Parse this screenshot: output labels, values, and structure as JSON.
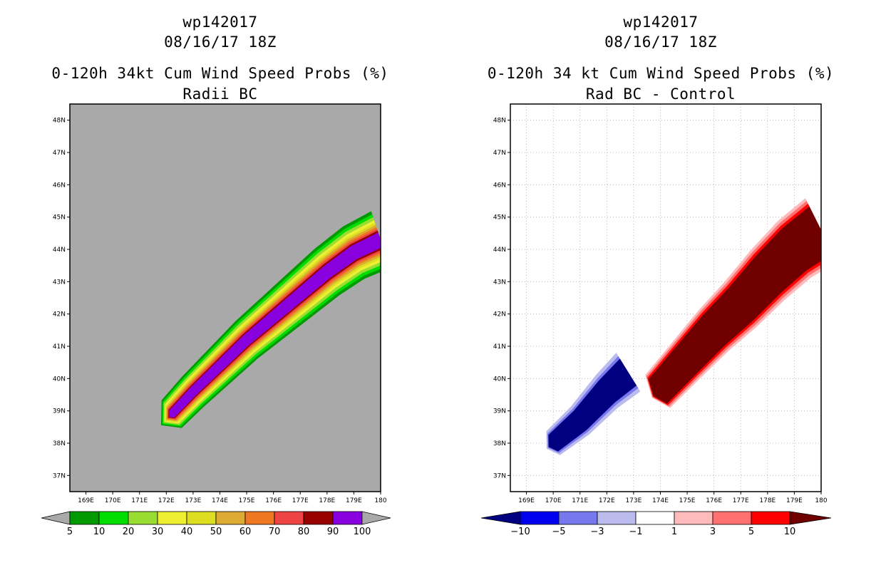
{
  "chart_data": [
    {
      "type": "heatmap",
      "header_line1": "wp142017",
      "header_line2": "08/16/17 18Z",
      "title": "0-120h 34kt Cum Wind Speed Probs (%)",
      "subtitle": "Radii BC",
      "x_ticks": [
        "169E",
        "170E",
        "171E",
        "172E",
        "173E",
        "174E",
        "175E",
        "176E",
        "177E",
        "178E",
        "179E",
        "180"
      ],
      "y_ticks": [
        "37N",
        "38N",
        "39N",
        "40N",
        "41N",
        "42N",
        "43N",
        "44N",
        "45N",
        "46N",
        "47N",
        "48N"
      ],
      "xlim": [
        168.4,
        180
      ],
      "ylim": [
        36.5,
        48.5
      ],
      "background_color": "#a9a9a9",
      "levels": [
        5,
        10,
        20,
        30,
        40,
        50,
        60,
        70,
        80,
        90,
        100
      ],
      "colors": [
        "#009900",
        "#00dd00",
        "#99dd33",
        "#eeee33",
        "#dddd22",
        "#ddaa33",
        "#ee7722",
        "#ee4444",
        "#990000",
        "#8800dd"
      ],
      "ridge": [
        [
          172.2,
          38.9
        ],
        [
          173,
          39.6
        ],
        [
          174,
          40.4
        ],
        [
          175,
          41.2
        ],
        [
          176,
          41.9
        ],
        [
          177,
          42.6
        ],
        [
          178,
          43.3
        ],
        [
          179,
          43.9
        ],
        [
          180,
          44.3
        ]
      ],
      "band_widths": [
        0.95,
        0.85,
        0.75,
        0.65,
        0.56,
        0.49,
        0.42,
        0.36,
        0.3,
        0.24
      ]
    },
    {
      "type": "heatmap",
      "header_line1": "wp142017",
      "header_line2": "08/16/17 18Z",
      "title": "0-120h 34 kt Cum Wind Speed Probs (%)",
      "subtitle": "Rad BC - Control",
      "x_ticks": [
        "169E",
        "170E",
        "171E",
        "172E",
        "173E",
        "174E",
        "175E",
        "176E",
        "177E",
        "178E",
        "179E",
        "180"
      ],
      "y_ticks": [
        "37N",
        "38N",
        "39N",
        "40N",
        "41N",
        "42N",
        "43N",
        "44N",
        "45N",
        "46N",
        "47N",
        "48N"
      ],
      "xlim": [
        168.4,
        180
      ],
      "ylim": [
        36.5,
        48.5
      ],
      "background_color": "#ffffff",
      "grid": true,
      "levels": [
        -10,
        -5,
        -3,
        -1,
        1,
        3,
        5,
        10
      ],
      "colors": [
        "#000080",
        "#0000ee",
        "#7777ee",
        "#bbbbee",
        "#ffffff",
        "#ffbbbb",
        "#ff7070",
        "#ff0000",
        "#700000"
      ],
      "positive_ridge": [
        [
          173.9,
          39.6
        ],
        [
          175,
          40.6
        ],
        [
          176,
          41.5
        ],
        [
          177,
          42.3
        ],
        [
          178,
          43.2
        ],
        [
          179,
          44
        ],
        [
          180,
          44.6
        ]
      ],
      "positive_widths": [
        1.15,
        1.05,
        0.95,
        0.85
      ],
      "negative_ridge": [
        [
          170,
          38.0
        ],
        [
          171,
          38.7
        ],
        [
          172,
          39.6
        ],
        [
          172.8,
          40.2
        ]
      ],
      "negative_widths": [
        0.75,
        0.62,
        0.52
      ]
    }
  ]
}
